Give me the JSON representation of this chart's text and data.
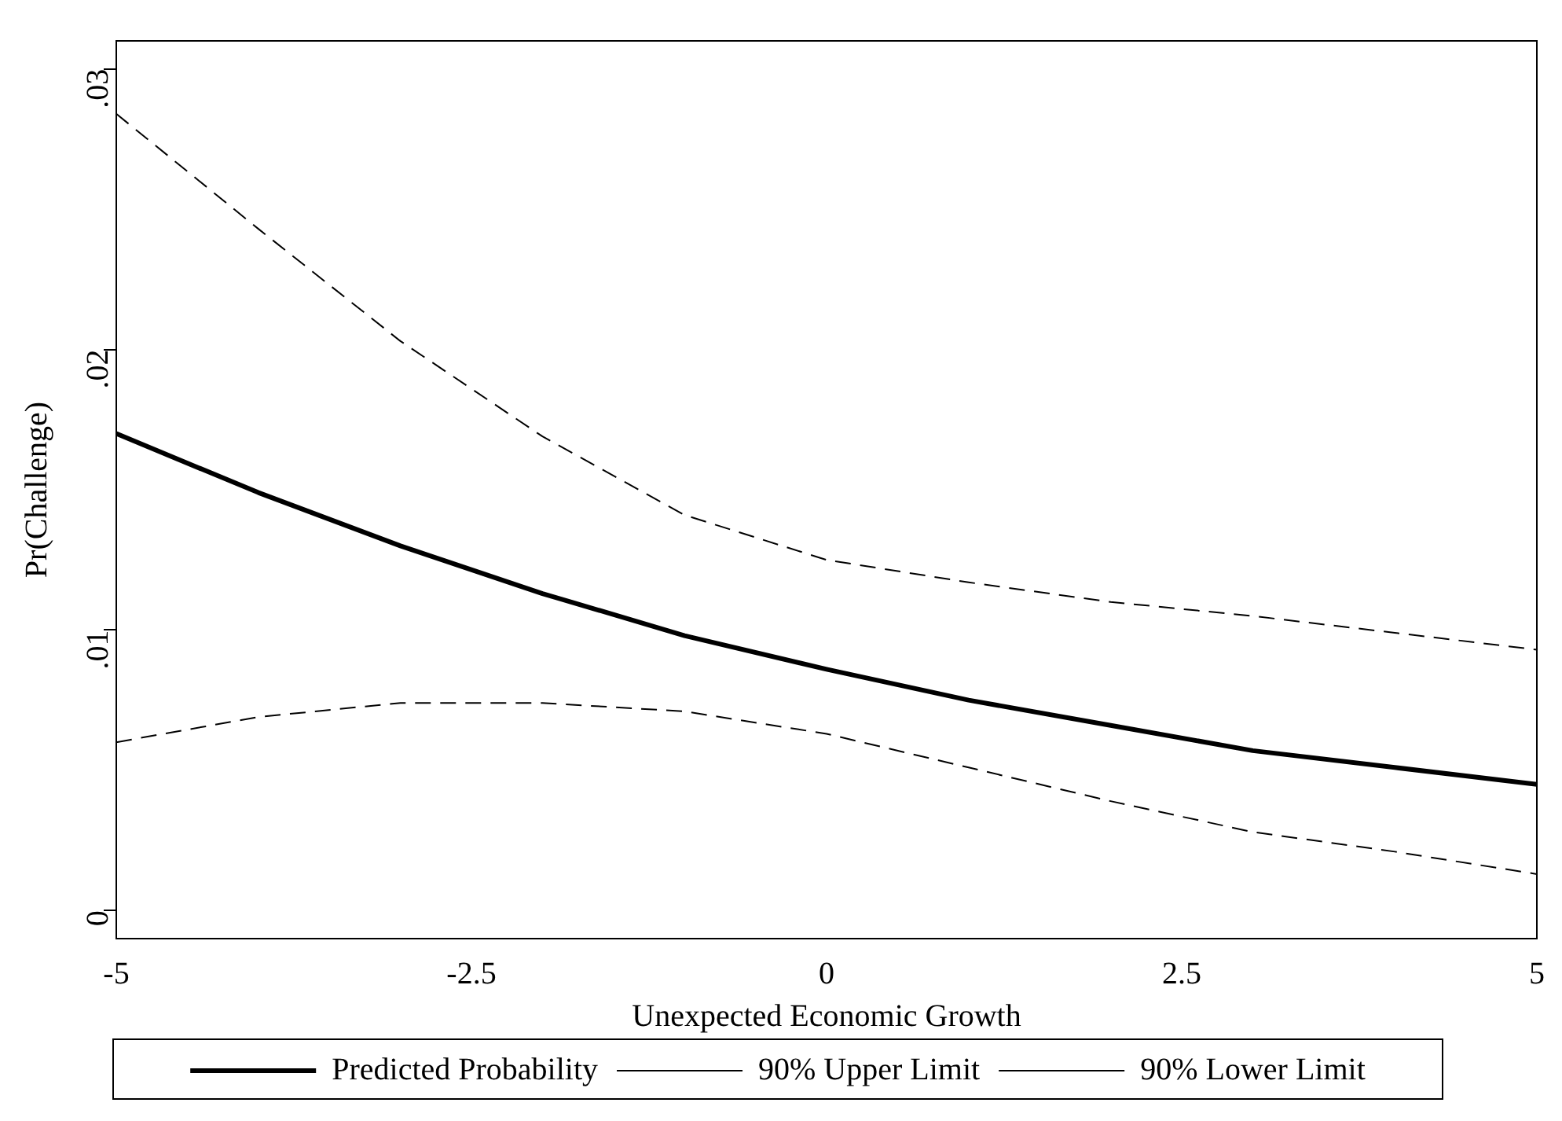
{
  "chart_data": {
    "type": "line",
    "xlabel": "Unexpected Economic Growth",
    "ylabel": "Pr(Challenge)",
    "x": [
      -5,
      -4,
      -3,
      -2,
      -1,
      0,
      1,
      2,
      3,
      4,
      5
    ],
    "series": [
      {
        "name": "Predicted Probability",
        "color": "#000000",
        "line_style": "solid",
        "values": [
          0.017,
          0.0149,
          0.013,
          0.0113,
          0.0098,
          0.0086,
          0.0075,
          0.0066,
          0.0057,
          0.0051,
          0.0045
        ]
      },
      {
        "name": "90% Upper Limit",
        "color": "#000000",
        "line_style": "dashed",
        "values": [
          0.0284,
          0.0243,
          0.0203,
          0.0169,
          0.0141,
          0.0125,
          0.0117,
          0.011,
          0.0105,
          0.0099,
          0.0093
        ]
      },
      {
        "name": "90% Lower Limit",
        "color": "#000000",
        "line_style": "dashed",
        "values": [
          0.006,
          0.0069,
          0.0074,
          0.0074,
          0.0071,
          0.0063,
          0.0051,
          0.0039,
          0.0028,
          0.0021,
          0.0013
        ]
      }
    ],
    "xlim": [
      -5,
      5
    ],
    "xticks": [
      -5,
      -2.5,
      0,
      2.5,
      5
    ],
    "ylim": [
      -0.001,
      0.031
    ],
    "yticks": [
      {
        "value": 0,
        "label": "0"
      },
      {
        "value": 0.01,
        "label": ".01"
      },
      {
        "value": 0.02,
        "label": ".02"
      },
      {
        "value": 0.03,
        "label": ".03"
      }
    ],
    "grid": false,
    "legend": "bottom",
    "marker": "none"
  }
}
